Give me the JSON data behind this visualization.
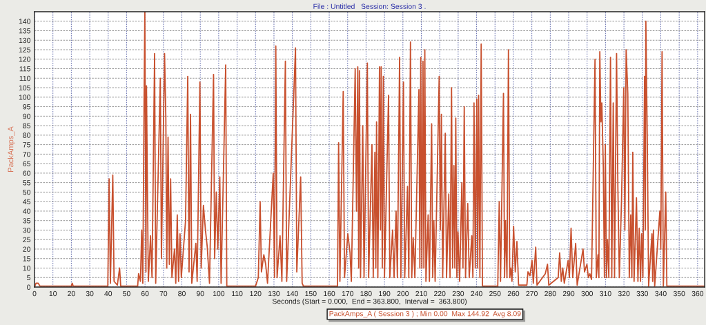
{
  "chart_data": {
    "type": "line",
    "title": "File : Untitled   Session: Session 3 .",
    "xlabel": "Seconds (Start = 0.000,  End = 363.800,  Interval =  363.800)",
    "ylabel": "PackAmps_A",
    "xlim": [
      0,
      363.8
    ],
    "xticks": [
      0,
      10,
      20,
      30,
      40,
      50,
      60,
      70,
      80,
      90,
      100,
      110,
      120,
      130,
      140,
      150,
      160,
      170,
      180,
      190,
      200,
      210,
      220,
      230,
      240,
      250,
      260,
      270,
      280,
      290,
      300,
      310,
      320,
      330,
      340,
      350,
      360
    ],
    "ylim": [
      0,
      145
    ],
    "yticks": [
      0,
      5,
      10,
      15,
      20,
      25,
      30,
      35,
      40,
      45,
      50,
      55,
      60,
      65,
      70,
      75,
      80,
      85,
      90,
      95,
      100,
      105,
      110,
      115,
      120,
      125,
      130,
      135,
      140
    ],
    "grid": true,
    "legend": "bottom",
    "series": [
      {
        "name": "PackAmps_A ( Session 3 ) ; Min 0.00  Max 144.92  Avg 8.09",
        "color": "#c8502e",
        "x": [
          0,
          0.8,
          2,
          3,
          20,
          20.5,
          21,
          39.8,
          40.5,
          41.2,
          42.5,
          43.2,
          45,
          45.5,
          46.2,
          46.8,
          56,
          56.5,
          57.5,
          58.2,
          58.8,
          59.5,
          59.9,
          60.5,
          60.8,
          61.2,
          61.8,
          63,
          63.8,
          65.2,
          65.8,
          68.3,
          68.9,
          70.6,
          71.3,
          71.8,
          72.5,
          73.2,
          73.9,
          74.6,
          76,
          76.7,
          77.5,
          78.2,
          79,
          79.7,
          82,
          83.2,
          83.9,
          84.7,
          85.4,
          87.6,
          88.3,
          89.8,
          90.5,
          91.7,
          92.8,
          93.8,
          95,
          97.2,
          97.8,
          98.7,
          99.5,
          100.6,
          101.3,
          103.8,
          104.4,
          120,
          121.5,
          122.5,
          123.2,
          124.5,
          125.5,
          126.5,
          129.6,
          130.3,
          131,
          131.7,
          133.3,
          134.3,
          136.2,
          136.9,
          141.7,
          142.4,
          144.5,
          145.3,
          146,
          164.5,
          165.1,
          165.8,
          167.6,
          168.3,
          170.1,
          171.3,
          172,
          174.1,
          174.8,
          175.5,
          176,
          176.4,
          177,
          178.2,
          178.9,
          180.7,
          181.4,
          183.2,
          183.9,
          184.8,
          185.3,
          185.7,
          186.4,
          187.3,
          187.8,
          188.2,
          188.8,
          189.4,
          190,
          192.2,
          192.9,
          194.4,
          195.2,
          196.3,
          197,
          198.2,
          198.9,
          200.3,
          201,
          202.5,
          203.2,
          204.1,
          204.8,
          205.6,
          206.5,
          208.7,
          209.2,
          209.7,
          210.3,
          210.9,
          211.4,
          211.9,
          212.5,
          213.7,
          214.4,
          215.6,
          216.2,
          216.8,
          217.5,
          219.7,
          220.3,
          220.9,
          221.6,
          223,
          223.7,
          224.9,
          225.6,
          226.4,
          227,
          227.7,
          228.2,
          228.7,
          229.3,
          229.9,
          230.8,
          232,
          232.6,
          233.3,
          234,
          235.2,
          236,
          237.4,
          238,
          238.6,
          239.3,
          240.1,
          240.6,
          241.1,
          241.8,
          242.5,
          243.2,
          251.5,
          252.3,
          253,
          254.6,
          255.2,
          255.7,
          256.5,
          257.3,
          258,
          258.6,
          259.2,
          260.1,
          261,
          261.9,
          262.8,
          267.3,
          267.9,
          269,
          270.1,
          270.8,
          272.1,
          272.8,
          277.3,
          278.5,
          279.2,
          284.3,
          285.1,
          286,
          286.8,
          287.6,
          289.7,
          290.4,
          291.3,
          292.2,
          293.8,
          294.6,
          297.8,
          298.6,
          299.9,
          300.7,
          301.5,
          302.4,
          304.3,
          305,
          305.9,
          306.4,
          306.9,
          307.5,
          308,
          308.8,
          309.4,
          309.9,
          310.5,
          311.1,
          311.8,
          312.7,
          313.4,
          314.2,
          314.9,
          316,
          316.7,
          317.5,
          318.7,
          319.9,
          320.5,
          321.2,
          322.1,
          322.9,
          323.7,
          324.3,
          324.8,
          325.5,
          326.8,
          327.6,
          328.3,
          329,
          329.6,
          330.3,
          331.2,
          331.6,
          331.9,
          332.7,
          333.4,
          335.2,
          335.6,
          336,
          336.7,
          339.5,
          340,
          340.7,
          341.4,
          342.7,
          343.3,
          363.8
        ],
        "values": [
          0,
          2,
          2,
          0.5,
          0.5,
          2,
          0.5,
          0.5,
          57,
          2,
          59,
          3,
          1,
          5,
          10,
          0.5,
          0.5,
          7,
          3,
          30,
          2,
          100,
          145,
          8,
          106,
          63,
          3,
          27,
          5,
          123,
          2,
          110,
          15,
          123,
          89,
          10,
          79,
          12,
          57,
          5,
          20,
          2,
          38,
          3,
          28,
          5,
          35,
          111,
          8,
          91,
          2,
          23,
          3,
          108,
          10,
          43,
          30,
          21,
          2,
          112,
          15,
          50,
          20,
          58,
          2,
          117,
          0.5,
          0.5,
          5,
          45,
          8,
          17,
          12,
          2,
          60,
          5,
          127,
          5,
          27,
          3,
          119,
          3,
          126,
          8,
          58,
          2,
          0.5,
          0.5,
          76,
          3,
          103,
          5,
          28,
          18,
          3,
          115,
          40,
          116,
          10,
          114,
          5,
          85,
          5,
          118,
          5,
          75,
          5,
          71,
          10,
          87,
          5,
          116,
          30,
          116,
          10,
          111,
          5,
          101,
          5,
          30,
          5,
          40,
          5,
          121,
          5,
          108,
          5,
          53,
          5,
          129,
          5,
          26,
          5,
          104,
          10,
          121,
          10,
          119,
          10,
          125,
          3,
          38,
          3,
          86,
          5,
          35,
          3,
          111,
          30,
          91,
          5,
          81,
          5,
          49,
          5,
          105,
          10,
          64,
          10,
          89,
          5,
          29,
          3,
          55,
          10,
          95,
          5,
          44,
          5,
          27,
          5,
          97,
          10,
          99,
          10,
          101,
          5,
          128,
          0.5,
          0.5,
          45,
          3,
          102,
          5,
          35,
          5,
          125,
          5,
          10,
          3,
          32,
          8,
          24,
          1,
          1,
          8,
          6,
          14,
          2,
          21,
          1,
          7,
          12,
          1,
          5,
          18,
          3,
          10,
          2,
          14,
          5,
          31,
          5,
          23,
          1,
          20,
          8,
          12,
          5,
          7,
          4,
          120,
          5,
          17,
          5,
          124,
          87,
          97,
          63,
          5,
          75,
          5,
          25,
          5,
          121,
          5,
          97,
          5,
          123,
          53,
          5,
          46,
          105,
          30,
          125,
          102,
          5,
          38,
          5,
          71,
          3,
          47,
          3,
          31,
          3,
          28,
          5,
          111,
          30,
          140,
          75,
          0.5,
          28,
          3,
          30,
          0.5,
          40,
          20,
          124,
          0.5,
          50,
          0.5,
          0.5
        ]
      }
    ]
  }
}
